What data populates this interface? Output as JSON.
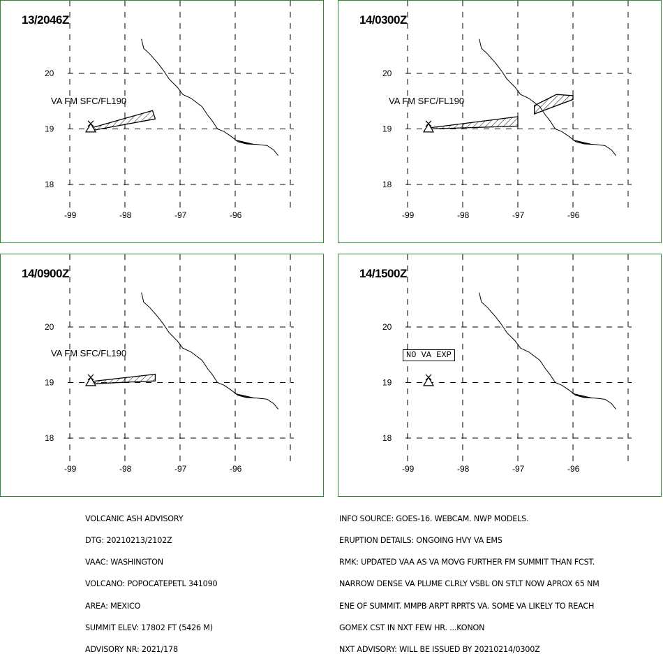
{
  "panels": [
    {
      "time": "13/2046Z",
      "label": "VA FM SFC/FL190",
      "polygons": [
        {
          "lon": [
            -98.6,
            -97.5,
            -97.45,
            -98.55
          ],
          "lat": [
            19.02,
            19.33,
            19.18,
            18.98
          ]
        }
      ]
    },
    {
      "time": "14/0300Z",
      "label": "VA FM SFC/FL190",
      "polygons": [
        {
          "lon": [
            -98.6,
            -97.0,
            -97.0,
            -98.6
          ],
          "lat": [
            19.02,
            19.22,
            19.05,
            19.0
          ]
        },
        {
          "lon": [
            -96.7,
            -96.3,
            -96.0,
            -96.0,
            -96.7
          ],
          "lat": [
            19.42,
            19.62,
            19.6,
            19.53,
            19.27
          ]
        }
      ]
    },
    {
      "time": "14/0900Z",
      "label": "VA FM SFC/FL190",
      "polygons": [
        {
          "lon": [
            -98.6,
            -97.45,
            -97.45,
            -98.55
          ],
          "lat": [
            19.02,
            19.15,
            19.03,
            18.98
          ]
        }
      ]
    },
    {
      "time": "14/1500Z",
      "box": "NO VA EXP",
      "polygons": []
    }
  ],
  "axes": {
    "lon_ticks": [
      "-99",
      "-98",
      "-97",
      "-96"
    ],
    "lat_ticks": [
      "20",
      "19",
      "18"
    ]
  },
  "volcano": {
    "lon": -98.62,
    "lat": 19.02
  },
  "left_text": [
    "VOLCANIC ASH ADVISORY",
    "DTG: 20210213/2102Z",
    "VAAC: WASHINGTON",
    "VOLCANO: POPOCATEPETL 341090",
    "AREA: MEXICO",
    "SUMMIT ELEV: 17802 FT (5426 M)",
    "ADVISORY NR: 2021/178"
  ],
  "right_text": [
    "INFO SOURCE: GOES-16. WEBCAM. NWP MODELS.",
    "ERUPTION DETAILS: ONGOING HVY VA EMS",
    "RMK: UPDATED VAA AS VA MOVG FURTHER FM SUMMIT THAN FCST.",
    "NARROW DENSE VA PLUME CLRLY VSBL ON STLT NOW APROX 65 NM",
    "ENE OF SUMMIT. MMPB ARPT RPRTS VA. SOME VA LIKELY TO REACH",
    "GOMEX CST IN NXT FEW HR. ...KONON",
    "NXT ADVISORY: WILL BE ISSUED BY 20210214/0300Z"
  ]
}
